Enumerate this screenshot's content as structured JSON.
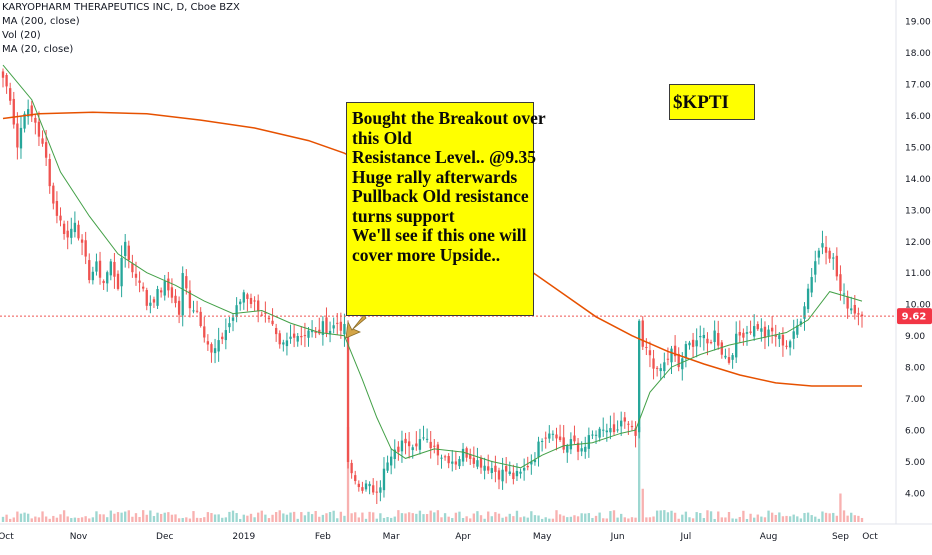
{
  "legend": {
    "title": "KARYOPHARM THERAPEUTICS INC, D, Cboe BZX",
    "ma200": "MA (200, close)",
    "vol": "Vol (20)",
    "ma20": "MA (20, close)"
  },
  "annotations": {
    "main_lines": [
      "Bought the Breakout over",
      "this Old",
      "Resistance Level.. @9.35",
      "Huge rally afterwards",
      "Pullback Old resistance",
      "turns support",
      "We'll see if this one will",
      "cover more Upside.."
    ],
    "ticker": "$KPTI"
  },
  "colors": {
    "up": "#26a69a",
    "down": "#ef5350",
    "ma200": "#e65100",
    "ma20": "#43a047",
    "price_line": "#ef5350",
    "price_label_bg": "#f23645",
    "arrow": "#d4a548",
    "note_bg": "#ffff00"
  },
  "chart_data": {
    "type": "candlestick",
    "title": "KARYOPHARM THERAPEUTICS INC, D, Cboe BZX",
    "ylim": [
      3.5,
      19.3
    ],
    "y_ticks": [
      "19.00",
      "18.00",
      "17.00",
      "16.00",
      "15.00",
      "14.00",
      "13.00",
      "12.00",
      "11.00",
      "10.00",
      "9.00",
      "8.00",
      "7.00",
      "6.00",
      "5.00",
      "4.00"
    ],
    "x_ticks": [
      "Oct",
      "Nov",
      "Dec",
      "2019",
      "Feb",
      "Mar",
      "Apr",
      "May",
      "Jun",
      "Jul",
      "Aug",
      "Sep",
      "Oct"
    ],
    "last_price": "9.62",
    "grid": false,
    "close_anchors": [
      [
        0,
        17.2
      ],
      [
        2,
        16.6
      ],
      [
        4,
        15.0
      ],
      [
        6,
        16.2
      ],
      [
        9,
        15.8
      ],
      [
        12,
        14.6
      ],
      [
        14,
        13.2
      ],
      [
        16,
        12.6
      ],
      [
        18,
        12.1
      ],
      [
        20,
        12.7
      ],
      [
        22,
        11.8
      ],
      [
        24,
        10.9
      ],
      [
        26,
        11.2
      ],
      [
        28,
        10.7
      ],
      [
        30,
        11.3
      ],
      [
        32,
        10.6
      ],
      [
        34,
        12.0
      ],
      [
        36,
        11.0
      ],
      [
        38,
        10.8
      ],
      [
        40,
        10.0
      ],
      [
        42,
        10.2
      ],
      [
        45,
        10.6
      ],
      [
        47,
        10.3
      ],
      [
        49,
        9.7
      ],
      [
        50,
        10.9
      ],
      [
        52,
        10.0
      ],
      [
        54,
        9.8
      ],
      [
        56,
        9.1
      ],
      [
        58,
        8.4
      ],
      [
        60,
        8.7
      ],
      [
        62,
        9.2
      ],
      [
        64,
        9.6
      ],
      [
        66,
        10.1
      ],
      [
        67,
        10.4
      ],
      [
        69,
        10.1
      ],
      [
        71,
        9.9
      ],
      [
        73,
        9.6
      ],
      [
        75,
        9.2
      ],
      [
        77,
        8.6
      ],
      [
        79,
        8.8
      ],
      [
        81,
        9.1
      ],
      [
        83,
        9.0
      ],
      [
        85,
        9.2
      ],
      [
        87,
        9.0
      ],
      [
        89,
        9.3
      ],
      [
        91,
        9.2
      ],
      [
        93,
        9.4
      ],
      [
        95,
        9.2
      ],
      [
        96,
        5.0
      ],
      [
        97,
        4.5
      ],
      [
        99,
        4.2
      ],
      [
        101,
        4.2
      ],
      [
        103,
        4.1
      ],
      [
        105,
        4.3
      ],
      [
        106,
        4.7
      ],
      [
        108,
        5.1
      ],
      [
        110,
        5.4
      ],
      [
        112,
        5.7
      ],
      [
        114,
        5.6
      ],
      [
        116,
        5.7
      ],
      [
        118,
        5.6
      ],
      [
        120,
        5.5
      ],
      [
        122,
        5.2
      ],
      [
        124,
        5.1
      ],
      [
        126,
        5.0
      ],
      [
        128,
        5.3
      ],
      [
        130,
        5.2
      ],
      [
        132,
        5.0
      ],
      [
        134,
        4.9
      ],
      [
        136,
        4.8
      ],
      [
        138,
        4.6
      ],
      [
        140,
        4.7
      ],
      [
        142,
        4.5
      ],
      [
        144,
        4.6
      ],
      [
        146,
        4.9
      ],
      [
        148,
        5.2
      ],
      [
        150,
        5.8
      ],
      [
        152,
        6.0
      ],
      [
        154,
        5.9
      ],
      [
        156,
        5.4
      ],
      [
        158,
        5.7
      ],
      [
        160,
        5.3
      ],
      [
        162,
        5.6
      ],
      [
        164,
        5.8
      ],
      [
        166,
        5.9
      ],
      [
        168,
        6.0
      ],
      [
        170,
        5.8
      ],
      [
        172,
        6.3
      ],
      [
        174,
        6.1
      ],
      [
        176,
        5.8
      ],
      [
        177,
        9.3
      ],
      [
        178,
        8.6
      ],
      [
        180,
        8.4
      ],
      [
        182,
        7.8
      ],
      [
        184,
        8.1
      ],
      [
        186,
        8.5
      ],
      [
        188,
        8.0
      ],
      [
        190,
        8.6
      ],
      [
        192,
        8.8
      ],
      [
        194,
        9.0
      ],
      [
        196,
        8.7
      ],
      [
        198,
        9.1
      ],
      [
        200,
        8.5
      ],
      [
        202,
        8.2
      ],
      [
        204,
        8.9
      ],
      [
        206,
        9.1
      ],
      [
        208,
        9.2
      ],
      [
        210,
        9.3
      ],
      [
        212,
        9.0
      ],
      [
        214,
        9.1
      ],
      [
        216,
        8.9
      ],
      [
        218,
        8.7
      ],
      [
        220,
        9.0
      ],
      [
        222,
        9.6
      ],
      [
        224,
        10.5
      ],
      [
        226,
        11.4
      ],
      [
        228,
        12.0
      ],
      [
        229,
        11.8
      ],
      [
        231,
        11.4
      ],
      [
        233,
        10.4
      ],
      [
        235,
        10.0
      ],
      [
        237,
        9.8
      ],
      [
        239,
        9.62
      ]
    ],
    "ma200_points": [
      [
        0,
        15.9
      ],
      [
        10,
        16.05
      ],
      [
        25,
        16.1
      ],
      [
        40,
        16.05
      ],
      [
        55,
        15.85
      ],
      [
        70,
        15.6
      ],
      [
        85,
        15.2
      ],
      [
        95,
        14.8
      ],
      [
        110,
        13.9
      ],
      [
        125,
        12.8
      ],
      [
        140,
        11.6
      ],
      [
        155,
        10.4
      ],
      [
        165,
        9.6
      ],
      [
        175,
        9.0
      ],
      [
        185,
        8.5
      ],
      [
        195,
        8.1
      ],
      [
        205,
        7.75
      ],
      [
        215,
        7.5
      ],
      [
        225,
        7.4
      ],
      [
        239,
        7.4
      ]
    ],
    "ma20_points": [
      [
        0,
        17.6
      ],
      [
        8,
        16.5
      ],
      [
        16,
        14.2
      ],
      [
        24,
        12.8
      ],
      [
        32,
        11.6
      ],
      [
        40,
        11.0
      ],
      [
        48,
        10.6
      ],
      [
        56,
        10.1
      ],
      [
        64,
        9.7
      ],
      [
        72,
        9.8
      ],
      [
        80,
        9.4
      ],
      [
        88,
        9.1
      ],
      [
        95,
        9.0
      ],
      [
        100,
        7.6
      ],
      [
        104,
        6.4
      ],
      [
        108,
        5.4
      ],
      [
        112,
        5.1
      ],
      [
        120,
        5.4
      ],
      [
        128,
        5.3
      ],
      [
        136,
        5.0
      ],
      [
        144,
        4.8
      ],
      [
        150,
        5.2
      ],
      [
        156,
        5.5
      ],
      [
        164,
        5.6
      ],
      [
        172,
        5.9
      ],
      [
        176,
        6.0
      ],
      [
        180,
        7.2
      ],
      [
        186,
        8.0
      ],
      [
        194,
        8.4
      ],
      [
        202,
        8.7
      ],
      [
        210,
        8.9
      ],
      [
        218,
        9.1
      ],
      [
        224,
        9.5
      ],
      [
        230,
        10.4
      ],
      [
        236,
        10.2
      ],
      [
        239,
        10.1
      ]
    ],
    "volume_spikes": [
      [
        96,
        1.0
      ],
      [
        177,
        1.0
      ],
      [
        178,
        0.35
      ],
      [
        233,
        0.3
      ]
    ]
  }
}
